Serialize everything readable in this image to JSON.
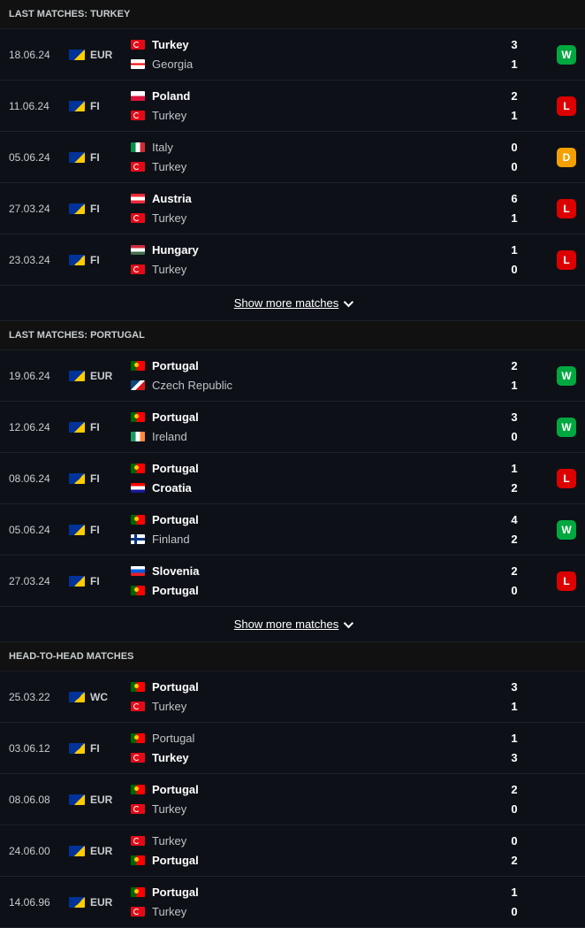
{
  "colors": {
    "background": "#0d1117",
    "text": "#ffffff",
    "text_dim": "#c0c4c8",
    "border": "#1e2228",
    "badge_win": "#00a83f",
    "badge_loss": "#dc0000",
    "badge_draw": "#f3a000"
  },
  "show_more_label": "Show more matches",
  "sections": [
    {
      "title": "LAST MATCHES: TURKEY",
      "show_more": true,
      "matches": [
        {
          "date": "18.06.24",
          "comp": "EUR",
          "home": {
            "name": "Turkey",
            "flag": "tur",
            "bold": true
          },
          "away": {
            "name": "Georgia",
            "flag": "geo",
            "bold": false
          },
          "hs": "3",
          "as": "1",
          "result": "W"
        },
        {
          "date": "11.06.24",
          "comp": "FI",
          "home": {
            "name": "Poland",
            "flag": "pol",
            "bold": true
          },
          "away": {
            "name": "Turkey",
            "flag": "tur",
            "bold": false
          },
          "hs": "2",
          "as": "1",
          "result": "L"
        },
        {
          "date": "05.06.24",
          "comp": "FI",
          "home": {
            "name": "Italy",
            "flag": "ita",
            "bold": false
          },
          "away": {
            "name": "Turkey",
            "flag": "tur",
            "bold": false
          },
          "hs": "0",
          "as": "0",
          "result": "D"
        },
        {
          "date": "27.03.24",
          "comp": "FI",
          "home": {
            "name": "Austria",
            "flag": "aut",
            "bold": true
          },
          "away": {
            "name": "Turkey",
            "flag": "tur",
            "bold": false
          },
          "hs": "6",
          "as": "1",
          "result": "L"
        },
        {
          "date": "23.03.24",
          "comp": "FI",
          "home": {
            "name": "Hungary",
            "flag": "hun",
            "bold": true
          },
          "away": {
            "name": "Turkey",
            "flag": "tur",
            "bold": false
          },
          "hs": "1",
          "as": "0",
          "result": "L"
        }
      ]
    },
    {
      "title": "LAST MATCHES: PORTUGAL",
      "show_more": true,
      "matches": [
        {
          "date": "19.06.24",
          "comp": "EUR",
          "home": {
            "name": "Portugal",
            "flag": "por",
            "bold": true
          },
          "away": {
            "name": "Czech Republic",
            "flag": "cze",
            "bold": false
          },
          "hs": "2",
          "as": "1",
          "result": "W"
        },
        {
          "date": "12.06.24",
          "comp": "FI",
          "home": {
            "name": "Portugal",
            "flag": "por",
            "bold": true
          },
          "away": {
            "name": "Ireland",
            "flag": "irl",
            "bold": false
          },
          "hs": "3",
          "as": "0",
          "result": "W"
        },
        {
          "date": "08.06.24",
          "comp": "FI",
          "home": {
            "name": "Portugal",
            "flag": "por",
            "bold": true
          },
          "away": {
            "name": "Croatia",
            "flag": "cro",
            "bold": true
          },
          "hs": "1",
          "as": "2",
          "result": "L"
        },
        {
          "date": "05.06.24",
          "comp": "FI",
          "home": {
            "name": "Portugal",
            "flag": "por",
            "bold": true
          },
          "away": {
            "name": "Finland",
            "flag": "fin",
            "bold": false
          },
          "hs": "4",
          "as": "2",
          "result": "W"
        },
        {
          "date": "27.03.24",
          "comp": "FI",
          "home": {
            "name": "Slovenia",
            "flag": "svn",
            "bold": true
          },
          "away": {
            "name": "Portugal",
            "flag": "por",
            "bold": true
          },
          "hs": "2",
          "as": "0",
          "result": "L"
        }
      ]
    },
    {
      "title": "HEAD-TO-HEAD MATCHES",
      "show_more": false,
      "matches": [
        {
          "date": "25.03.22",
          "comp": "WC",
          "home": {
            "name": "Portugal",
            "flag": "por",
            "bold": true
          },
          "away": {
            "name": "Turkey",
            "flag": "tur",
            "bold": false
          },
          "hs": "3",
          "as": "1",
          "result": null
        },
        {
          "date": "03.06.12",
          "comp": "FI",
          "home": {
            "name": "Portugal",
            "flag": "por",
            "bold": false
          },
          "away": {
            "name": "Turkey",
            "flag": "tur",
            "bold": true
          },
          "hs": "1",
          "as": "3",
          "result": null
        },
        {
          "date": "08.06.08",
          "comp": "EUR",
          "home": {
            "name": "Portugal",
            "flag": "por",
            "bold": true
          },
          "away": {
            "name": "Turkey",
            "flag": "tur",
            "bold": false
          },
          "hs": "2",
          "as": "0",
          "result": null
        },
        {
          "date": "24.06.00",
          "comp": "EUR",
          "home": {
            "name": "Turkey",
            "flag": "tur",
            "bold": false
          },
          "away": {
            "name": "Portugal",
            "flag": "por",
            "bold": true
          },
          "hs": "0",
          "as": "2",
          "result": null
        },
        {
          "date": "14.06.96",
          "comp": "EUR",
          "home": {
            "name": "Portugal",
            "flag": "por",
            "bold": true
          },
          "away": {
            "name": "Turkey",
            "flag": "tur",
            "bold": false
          },
          "hs": "1",
          "as": "0",
          "result": null
        }
      ]
    }
  ]
}
